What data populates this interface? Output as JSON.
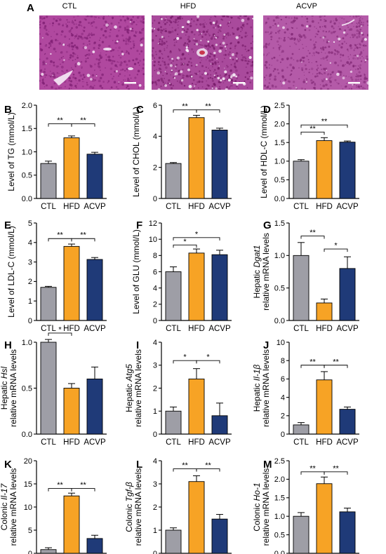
{
  "histology": {
    "letter": "A",
    "images": [
      {
        "label": "CTL",
        "base": "#b0489f",
        "dark": "#7f1f73",
        "light": "#f0dcef"
      },
      {
        "label": "HFD",
        "base": "#a94a9c",
        "dark": "#761a68",
        "light": "#f5eaf5"
      },
      {
        "label": "ACVP",
        "base": "#b45aa8",
        "dark": "#832a77",
        "light": "#efdcee"
      }
    ]
  },
  "colors": {
    "CTL": "#9e9ea6",
    "HFD": "#f7a325",
    "ACVP": "#1f3a78"
  },
  "chart_data": [
    {
      "letter": "B",
      "type": "bar",
      "ylabel_lines": [
        "Level of TG (mmol/L)"
      ],
      "ylim": [
        0,
        2.0
      ],
      "yticks": [
        "0.0",
        "0.5",
        "1.0",
        "1.5",
        "2.0"
      ],
      "categories": [
        "CTL",
        "HFD",
        "ACVP"
      ],
      "values": [
        0.75,
        1.3,
        0.95
      ],
      "errors": [
        0.05,
        0.04,
        0.04
      ],
      "sig": [
        {
          "from": 0,
          "to": 1,
          "label": "**",
          "y": 1.6
        },
        {
          "from": 1,
          "to": 2,
          "label": "**",
          "y": 1.6
        }
      ]
    },
    {
      "letter": "C",
      "type": "bar",
      "ylabel_lines": [
        "Level of CHOL (mmol/L)"
      ],
      "ylim": [
        0,
        6
      ],
      "yticks": [
        "0",
        "2",
        "4",
        "6"
      ],
      "categories": [
        "CTL",
        "HFD",
        "ACVP"
      ],
      "values": [
        2.25,
        5.2,
        4.4
      ],
      "errors": [
        0.06,
        0.15,
        0.12
      ],
      "sig": [
        {
          "from": 0,
          "to": 1,
          "label": "**",
          "y": 5.7
        },
        {
          "from": 1,
          "to": 2,
          "label": "**",
          "y": 5.7
        }
      ]
    },
    {
      "letter": "D",
      "type": "bar",
      "ylabel_lines": [
        "Level of HDL-C (mmol/L)"
      ],
      "ylim": [
        0,
        2.5
      ],
      "yticks": [
        "0.0",
        "0.5",
        "1.0",
        "1.5",
        "2.0",
        "2.5"
      ],
      "categories": [
        "CTL",
        "HFD",
        "ACVP"
      ],
      "values": [
        1.0,
        1.55,
        1.51
      ],
      "errors": [
        0.04,
        0.08,
        0.03
      ],
      "sig": [
        {
          "from": 0,
          "to": 1,
          "label": "**",
          "y": 1.78
        },
        {
          "from": 0,
          "to": 2,
          "label": "**",
          "y": 1.97
        }
      ]
    },
    {
      "letter": "E",
      "type": "bar",
      "ylabel_lines": [
        "Level of LDL-C (mmol/L)"
      ],
      "ylim": [
        0,
        5
      ],
      "yticks": [
        "0",
        "1",
        "2",
        "3",
        "4",
        "5"
      ],
      "categories": [
        "CTL",
        "HFD",
        "ACVP"
      ],
      "values": [
        1.7,
        3.8,
        3.13
      ],
      "errors": [
        0.05,
        0.12,
        0.1
      ],
      "sig": [
        {
          "from": 0,
          "to": 1,
          "label": "**",
          "y": 4.2
        },
        {
          "from": 1,
          "to": 2,
          "label": "**",
          "y": 4.2
        }
      ]
    },
    {
      "letter": "F",
      "type": "bar",
      "ylabel_lines": [
        "Level of GLU (mmol/L)"
      ],
      "ylim": [
        0,
        12
      ],
      "yticks": [
        "0",
        "2",
        "4",
        "6",
        "8",
        "10",
        "12"
      ],
      "categories": [
        "CTL",
        "HFD",
        "ACVP"
      ],
      "values": [
        6.0,
        8.3,
        8.1
      ],
      "errors": [
        0.6,
        0.5,
        0.55
      ],
      "sig": [
        {
          "from": 0,
          "to": 1,
          "label": "*",
          "y": 9.3
        },
        {
          "from": 0,
          "to": 2,
          "label": "*",
          "y": 10.2
        }
      ]
    },
    {
      "letter": "G",
      "type": "bar",
      "ylabel_lines": [
        "Hepatic ",
        "Dgat1",
        "relative mRNA levels"
      ],
      "ylim": [
        0,
        1.5
      ],
      "yticks": [
        "0.0",
        "0.5",
        "1.0",
        "1.5"
      ],
      "categories": [
        "CTL",
        "HFD",
        "ACVP"
      ],
      "values": [
        1.0,
        0.27,
        0.8
      ],
      "errors": [
        0.2,
        0.06,
        0.18
      ],
      "sig": [
        {
          "from": 0,
          "to": 1,
          "label": "**",
          "y": 1.3
        },
        {
          "from": 1,
          "to": 2,
          "label": "*",
          "y": 1.1
        }
      ]
    },
    {
      "letter": "H",
      "type": "bar",
      "ylabel_lines": [
        "Hepatic ",
        "Hsl",
        "relative mRNA levels"
      ],
      "ylim": [
        0,
        1.0
      ],
      "yticks": [
        "0.0",
        "0.5",
        "1.0"
      ],
      "categories": [
        "CTL",
        "HFD",
        "ACVP"
      ],
      "values": [
        1.0,
        0.5,
        0.6
      ],
      "errors": [
        0.03,
        0.05,
        0.13
      ],
      "sig": [
        {
          "from": 0,
          "to": 1,
          "label": "*",
          "y": 1.1
        }
      ]
    },
    {
      "letter": "I",
      "type": "bar",
      "ylabel_lines": [
        "Hepatic ",
        "Atg5",
        "relative mRNA levels"
      ],
      "ylim": [
        0,
        4
      ],
      "yticks": [
        "0",
        "1",
        "2",
        "3",
        "4"
      ],
      "categories": [
        "CTL",
        "HFD",
        "ACVP"
      ],
      "values": [
        1.0,
        2.4,
        0.8
      ],
      "errors": [
        0.18,
        0.45,
        0.55
      ],
      "sig": [
        {
          "from": 0,
          "to": 1,
          "label": "*",
          "y": 3.2
        },
        {
          "from": 1,
          "to": 2,
          "label": "*",
          "y": 3.2
        }
      ]
    },
    {
      "letter": "J",
      "type": "bar",
      "ylabel_lines": [
        "Hepatic ",
        "Il-1β",
        "relative mRNA levels"
      ],
      "ylim": [
        0,
        10
      ],
      "yticks": [
        "0",
        "2",
        "4",
        "6",
        "8",
        "10"
      ],
      "categories": [
        "CTL",
        "HFD",
        "ACVP"
      ],
      "values": [
        1.0,
        5.9,
        2.7
      ],
      "errors": [
        0.25,
        0.9,
        0.25
      ],
      "sig": [
        {
          "from": 0,
          "to": 1,
          "label": "**",
          "y": 7.5
        },
        {
          "from": 1,
          "to": 2,
          "label": "**",
          "y": 7.5
        }
      ]
    },
    {
      "letter": "K",
      "type": "bar",
      "ylabel_lines": [
        "Colonic ",
        "Il-17",
        "relative mRNA levels"
      ],
      "ylim": [
        0,
        20
      ],
      "yticks": [
        "0",
        "5",
        "10",
        "15",
        "20"
      ],
      "categories": [
        "CTL",
        "HFD",
        "ACVP"
      ],
      "values": [
        0.8,
        12.4,
        3.2
      ],
      "errors": [
        0.4,
        0.6,
        0.7
      ],
      "sig": [
        {
          "from": 0,
          "to": 1,
          "label": "**",
          "y": 14.0
        },
        {
          "from": 1,
          "to": 2,
          "label": "**",
          "y": 14.0
        }
      ]
    },
    {
      "letter": "L",
      "type": "bar",
      "ylabel_lines": [
        "Colonic ",
        "Tgf-β",
        "relative mRNA levels"
      ],
      "ylim": [
        0,
        4
      ],
      "yticks": [
        "0",
        "1",
        "2",
        "3",
        "4"
      ],
      "categories": [
        "CTL",
        "HFD",
        "ACVP"
      ],
      "values": [
        1.0,
        3.1,
        1.48
      ],
      "errors": [
        0.1,
        0.25,
        0.2
      ],
      "sig": [
        {
          "from": 0,
          "to": 1,
          "label": "**",
          "y": 3.65
        },
        {
          "from": 1,
          "to": 2,
          "label": "**",
          "y": 3.65
        }
      ]
    },
    {
      "letter": "M",
      "type": "bar",
      "ylabel_lines": [
        "Colonic ",
        "Ho-1",
        "relative mRNA levels"
      ],
      "ylim": [
        0,
        2.5
      ],
      "yticks": [
        "0.0",
        "0.5",
        "1.0",
        "1.5",
        "2.0",
        "2.5"
      ],
      "categories": [
        "CTL",
        "HFD",
        "ACVP"
      ],
      "values": [
        1.0,
        1.88,
        1.12
      ],
      "errors": [
        0.1,
        0.18,
        0.1
      ],
      "sig": [
        {
          "from": 0,
          "to": 1,
          "label": "**",
          "y": 2.2
        },
        {
          "from": 1,
          "to": 2,
          "label": "**",
          "y": 2.2
        }
      ]
    }
  ]
}
